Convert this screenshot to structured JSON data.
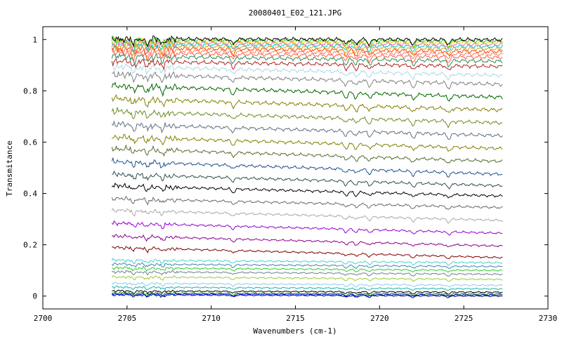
{
  "chart_data": {
    "type": "line",
    "title": "20080401_E02_121.JPG",
    "xlabel": "Wavenumbers (cm-1)",
    "ylabel": "Transmitance",
    "xlim": [
      2700,
      2730
    ],
    "ylim": [
      -0.05,
      1.05
    ],
    "x_ticks": [
      2700,
      2705,
      2710,
      2715,
      2720,
      2725,
      2730
    ],
    "y_ticks": [
      0,
      0.2,
      0.4,
      0.6,
      0.8,
      1
    ],
    "x_tick_labels": [
      "2700",
      "2705",
      "2710",
      "2715",
      "2720",
      "2725",
      "2730"
    ],
    "y_tick_labels": [
      "0",
      "0.2",
      "0.4",
      "0.6",
      "0.8",
      "1"
    ],
    "grid": false,
    "x_range_data": [
      2704.1,
      2727.3
    ],
    "series": [
      {
        "color": "#000080",
        "start": 0.005,
        "end": 0.0
      },
      {
        "color": "#0000ff",
        "start": 0.008,
        "end": 0.004
      },
      {
        "color": "#008000",
        "start": 0.012,
        "end": 0.008
      },
      {
        "color": "#000000",
        "start": 0.02,
        "end": 0.015
      },
      {
        "color": "#20b2aa",
        "start": 0.035,
        "end": 0.028
      },
      {
        "color": "#87ceeb",
        "start": 0.05,
        "end": 0.042
      },
      {
        "color": "#9acd32",
        "start": 0.075,
        "end": 0.065
      },
      {
        "color": "#708090",
        "start": 0.095,
        "end": 0.085
      },
      {
        "color": "#32cd32",
        "start": 0.11,
        "end": 0.1
      },
      {
        "color": "#4682b4",
        "start": 0.125,
        "end": 0.115
      },
      {
        "color": "#48d1cc",
        "start": 0.14,
        "end": 0.13
      },
      {
        "color": "#800000",
        "start": 0.19,
        "end": 0.15
      },
      {
        "color": "#8b008b",
        "start": 0.235,
        "end": 0.195
      },
      {
        "color": "#9400d3",
        "start": 0.285,
        "end": 0.245
      },
      {
        "color": "#a9a9a9",
        "start": 0.335,
        "end": 0.295
      },
      {
        "color": "#696969",
        "start": 0.38,
        "end": 0.345
      },
      {
        "color": "#000000",
        "start": 0.43,
        "end": 0.39
      },
      {
        "color": "#2f4f4f",
        "start": 0.475,
        "end": 0.43
      },
      {
        "color": "#1f4e8c",
        "start": 0.525,
        "end": 0.475
      },
      {
        "color": "#556b2f",
        "start": 0.575,
        "end": 0.525
      },
      {
        "color": "#808000",
        "start": 0.62,
        "end": 0.575
      },
      {
        "color": "#5f6f7f",
        "start": 0.67,
        "end": 0.625
      },
      {
        "color": "#6b8e23",
        "start": 0.72,
        "end": 0.675
      },
      {
        "color": "#808000",
        "start": 0.77,
        "end": 0.725
      },
      {
        "color": "#006400",
        "start": 0.82,
        "end": 0.775
      },
      {
        "color": "#808080",
        "start": 0.865,
        "end": 0.825
      },
      {
        "color": "#add8e6",
        "start": 0.895,
        "end": 0.86
      },
      {
        "color": "#b22222",
        "start": 0.915,
        "end": 0.895
      },
      {
        "color": "#2e8b57",
        "start": 0.935,
        "end": 0.915
      },
      {
        "color": "#ff6347",
        "start": 0.948,
        "end": 0.93
      },
      {
        "color": "#fa8072",
        "start": 0.958,
        "end": 0.942
      },
      {
        "color": "#ff4500",
        "start": 0.967,
        "end": 0.953
      },
      {
        "color": "#daa520",
        "start": 0.975,
        "end": 0.963
      },
      {
        "color": "#00ced1",
        "start": 0.982,
        "end": 0.972
      },
      {
        "color": "#ff69b4",
        "start": 0.988,
        "end": 0.98
      },
      {
        "color": "#ffd700",
        "start": 0.994,
        "end": 0.988
      },
      {
        "color": "#32cd32",
        "start": 0.998,
        "end": 0.994
      },
      {
        "color": "#000000",
        "start": 1.002,
        "end": 0.999
      }
    ]
  }
}
